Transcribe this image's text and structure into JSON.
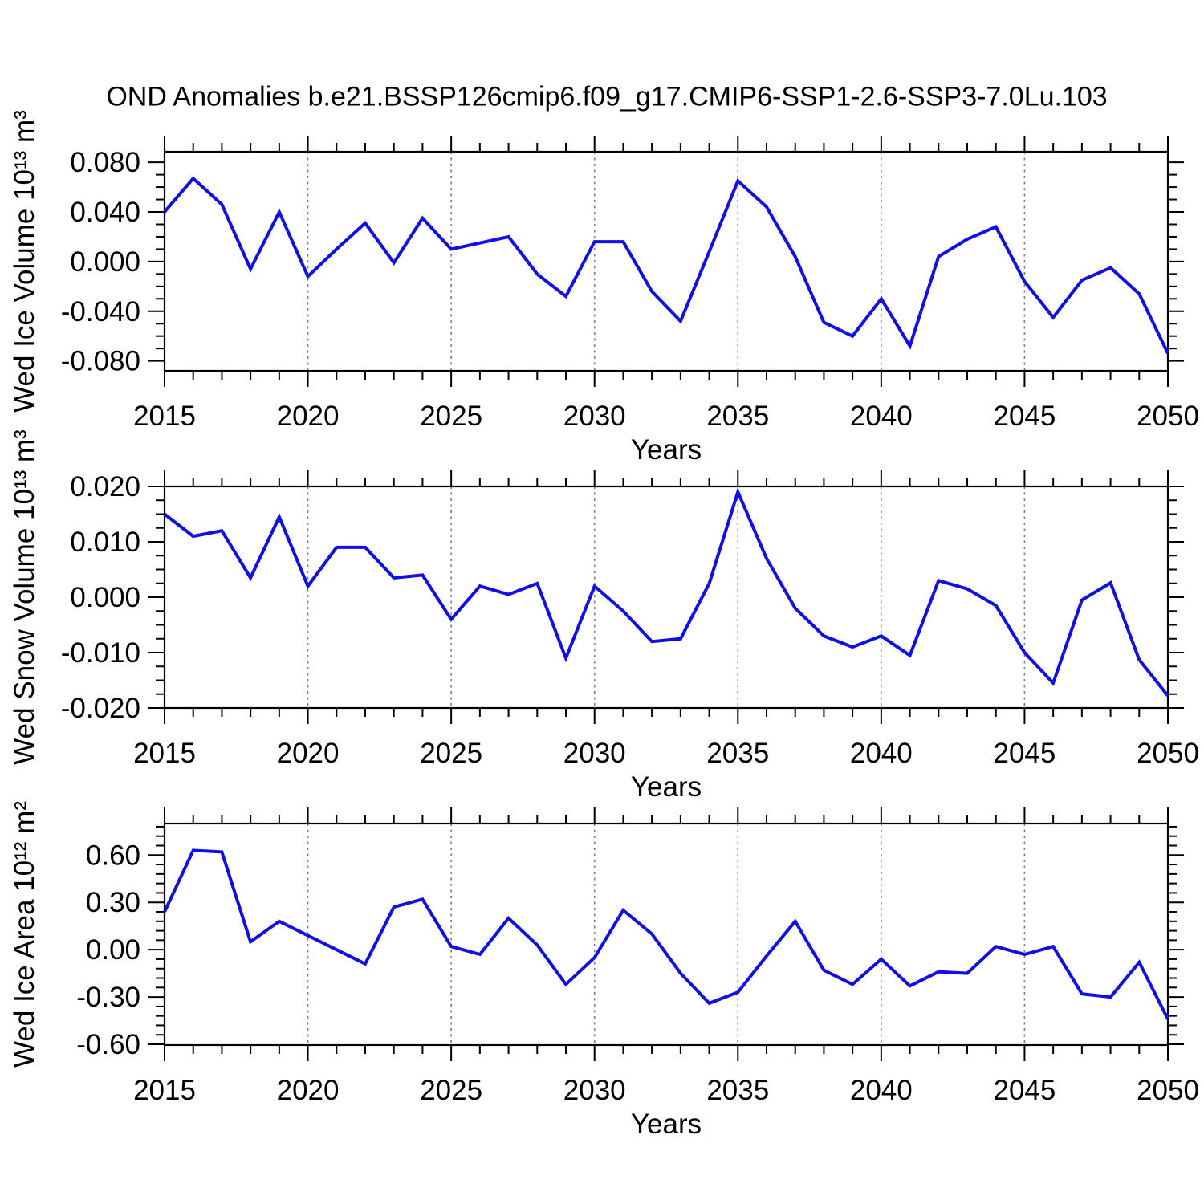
{
  "title": "OND Anomalies b.e21.BSSP126cmip6.f09_g17.CMIP6-SSP1-2.6-SSP3-7.0Lu.103",
  "colors": {
    "line": "#0f0fe6",
    "grid": "#7f7f7f",
    "axis": "#000000",
    "background": "#ffffff"
  },
  "years": [
    2015,
    2016,
    2017,
    2018,
    2019,
    2020,
    2021,
    2022,
    2023,
    2024,
    2025,
    2026,
    2027,
    2028,
    2029,
    2030,
    2031,
    2032,
    2033,
    2034,
    2035,
    2036,
    2037,
    2038,
    2039,
    2040,
    2041,
    2042,
    2043,
    2044,
    2045,
    2046,
    2047,
    2048,
    2049,
    2050
  ],
  "chart_data": [
    {
      "id": "wed-ice-volume",
      "type": "line",
      "ylabel": "Wed Ice Volume 10¹³ m³",
      "xlabel": "Years",
      "x_major_ticks": [
        2015,
        2020,
        2025,
        2030,
        2035,
        2040,
        2045,
        2050
      ],
      "x_minor_step": 1,
      "gridline_years": [
        2020,
        2025,
        2030,
        2035,
        2040,
        2045
      ],
      "ylim": [
        -0.088,
        0.0885
      ],
      "y_major_ticks": [
        0.08,
        0.04,
        0.0,
        -0.04,
        -0.08
      ],
      "y_tick_labels": [
        "0.080",
        "0.040",
        "0.000",
        "-0.040",
        "-0.080"
      ],
      "y_minor_step": 0.01,
      "values": [
        0.04,
        0.067,
        0.046,
        -0.006,
        0.04,
        -0.012,
        0.01,
        0.031,
        -0.001,
        0.035,
        0.01,
        0.015,
        0.02,
        -0.01,
        -0.028,
        0.016,
        0.016,
        -0.024,
        -0.048,
        0.008,
        0.065,
        0.044,
        0.004,
        -0.049,
        -0.06,
        -0.03,
        -0.068,
        0.004,
        0.018,
        0.028,
        -0.016,
        -0.045,
        -0.015,
        -0.005,
        -0.026,
        -0.074
      ]
    },
    {
      "id": "wed-snow-volume",
      "type": "line",
      "ylabel": "Wed Snow Volume 10¹³ m³",
      "xlabel": "Years",
      "x_major_ticks": [
        2015,
        2020,
        2025,
        2030,
        2035,
        2040,
        2045,
        2050
      ],
      "x_minor_step": 1,
      "gridline_years": [
        2020,
        2025,
        2030,
        2035,
        2040,
        2045
      ],
      "ylim": [
        -0.02,
        0.02
      ],
      "y_major_ticks": [
        0.02,
        0.01,
        0.0,
        -0.01,
        -0.02
      ],
      "y_tick_labels": [
        "0.020",
        "0.010",
        "0.000",
        "-0.010",
        "-0.020"
      ],
      "y_minor_step": 0.0025,
      "values": [
        0.015,
        0.011,
        0.012,
        0.0035,
        0.0145,
        0.002,
        0.009,
        0.009,
        0.0035,
        0.004,
        -0.004,
        0.002,
        0.0005,
        0.0025,
        -0.011,
        0.002,
        -0.0025,
        -0.008,
        -0.0075,
        0.0025,
        0.019,
        0.007,
        -0.002,
        -0.007,
        -0.009,
        -0.007,
        -0.0105,
        0.003,
        0.0015,
        -0.0015,
        -0.01,
        -0.0155,
        -0.0005,
        0.0026,
        -0.0113,
        -0.0178
      ]
    },
    {
      "id": "wed-ice-area",
      "type": "line",
      "ylabel": "Wed Ice Area 10¹² m²",
      "xlabel": "Years",
      "x_major_ticks": [
        2015,
        2020,
        2025,
        2030,
        2035,
        2040,
        2045,
        2050
      ],
      "x_minor_step": 1,
      "gridline_years": [
        2020,
        2025,
        2030,
        2035,
        2040,
        2045
      ],
      "ylim": [
        -0.605,
        0.8
      ],
      "y_major_ticks": [
        0.6,
        0.3,
        0.0,
        -0.3,
        -0.6
      ],
      "y_tick_labels": [
        "0.60",
        "0.30",
        "0.00",
        "-0.30",
        "-0.60"
      ],
      "y_minor_step": 0.06,
      "values": [
        0.24,
        0.63,
        0.62,
        0.05,
        0.18,
        0.09,
        0.0,
        -0.09,
        0.27,
        0.32,
        0.02,
        -0.03,
        0.2,
        0.03,
        -0.22,
        -0.05,
        0.25,
        0.1,
        -0.15,
        -0.34,
        -0.27,
        -0.04,
        0.18,
        -0.13,
        -0.22,
        -0.06,
        -0.23,
        -0.14,
        -0.15,
        0.02,
        -0.03,
        0.02,
        -0.28,
        -0.3,
        -0.08,
        -0.44
      ]
    }
  ]
}
